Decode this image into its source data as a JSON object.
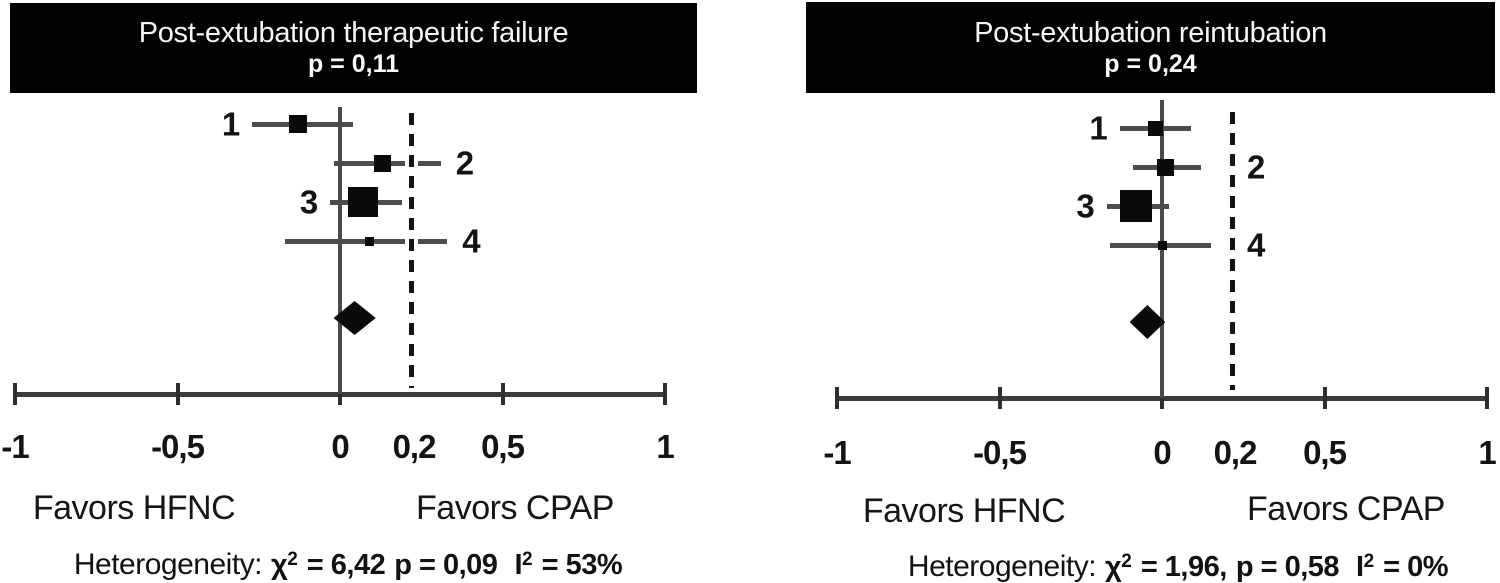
{
  "figure": {
    "description": "Two forest plots comparing HFNC vs CPAP after extubation",
    "accent_black": "#020202",
    "line_gray": "#4d4d4d"
  },
  "chart_data": [
    {
      "type": "scatter",
      "subtype": "forest",
      "title": "Post-extubation therapeutic failure",
      "p_label": "p = 0,11",
      "xlim": [
        -1,
        1
      ],
      "reference_value": 0,
      "dashed_line": {
        "value": 0.2,
        "label": "0,2"
      },
      "x_ticks": [
        {
          "value": -1,
          "label": "-1"
        },
        {
          "value": -0.5,
          "label": "-0,5"
        },
        {
          "value": 0,
          "label": "0"
        },
        {
          "value": 0.5,
          "label": "0,5"
        },
        {
          "value": 1,
          "label": "1"
        }
      ],
      "studies": [
        {
          "label": "1",
          "estimate": -0.13,
          "ci_low": -0.27,
          "ci_high": 0.04,
          "marker_size": 18,
          "label_side": "left"
        },
        {
          "label": "2",
          "estimate": 0.13,
          "ci_low": -0.02,
          "ci_high": 0.31,
          "marker_size": 17,
          "label_side": "right"
        },
        {
          "label": "3",
          "estimate": 0.07,
          "ci_low": -0.03,
          "ci_high": 0.19,
          "marker_size": 30,
          "label_side": "left"
        },
        {
          "label": "4",
          "estimate": 0.09,
          "ci_low": -0.17,
          "ci_high": 0.33,
          "marker_size": 9,
          "label_side": "right"
        }
      ],
      "pooled": {
        "estimate": 0.05,
        "ci_low": -0.02,
        "ci_high": 0.11
      },
      "favors_left": "Favors HFNC",
      "favors_right": "Favors CPAP",
      "heterogeneity": {
        "label": "Heterogeneity:",
        "chi_sym": "χ",
        "chi_exp": "2",
        "chi_rest": "= 6,42",
        "p_part": "p = 0,09",
        "i_sym": "I",
        "i_exp": "2",
        "i_rest": "= 53%"
      }
    },
    {
      "type": "scatter",
      "subtype": "forest",
      "title": "Post-extubation reintubation",
      "p_label": "p = 0,24",
      "xlim": [
        -1,
        1
      ],
      "reference_value": 0,
      "dashed_line": {
        "value": 0.2,
        "label": "0,2"
      },
      "x_ticks": [
        {
          "value": -1,
          "label": "-1"
        },
        {
          "value": -0.5,
          "label": "-0,5"
        },
        {
          "value": 0,
          "label": "0"
        },
        {
          "value": 0.5,
          "label": "0,5"
        },
        {
          "value": 1,
          "label": "1"
        }
      ],
      "studies": [
        {
          "label": "1",
          "estimate": -0.02,
          "ci_low": -0.13,
          "ci_high": 0.09,
          "marker_size": 15,
          "label_side": "left"
        },
        {
          "label": "2",
          "estimate": 0.01,
          "ci_low": -0.09,
          "ci_high": 0.12,
          "marker_size": 17,
          "label_side": "right"
        },
        {
          "label": "3",
          "estimate": -0.08,
          "ci_low": -0.17,
          "ci_high": 0.02,
          "marker_size": 32,
          "label_side": "left"
        },
        {
          "label": "4",
          "estimate": 0.0,
          "ci_low": -0.16,
          "ci_high": 0.15,
          "marker_size": 9,
          "label_side": "right"
        }
      ],
      "pooled": {
        "estimate": -0.04,
        "ci_low": -0.1,
        "ci_high": 0.01
      },
      "favors_left": "Favors HFNC",
      "favors_right": "Favors CPAP",
      "heterogeneity": {
        "label": "Heterogeneity:",
        "chi_sym": "χ",
        "chi_exp": "2",
        "chi_rest": "= 1,96,",
        "p_part": "p = 0,58",
        "i_sym": "I",
        "i_exp": "2",
        "i_rest": "= 0%"
      }
    }
  ]
}
